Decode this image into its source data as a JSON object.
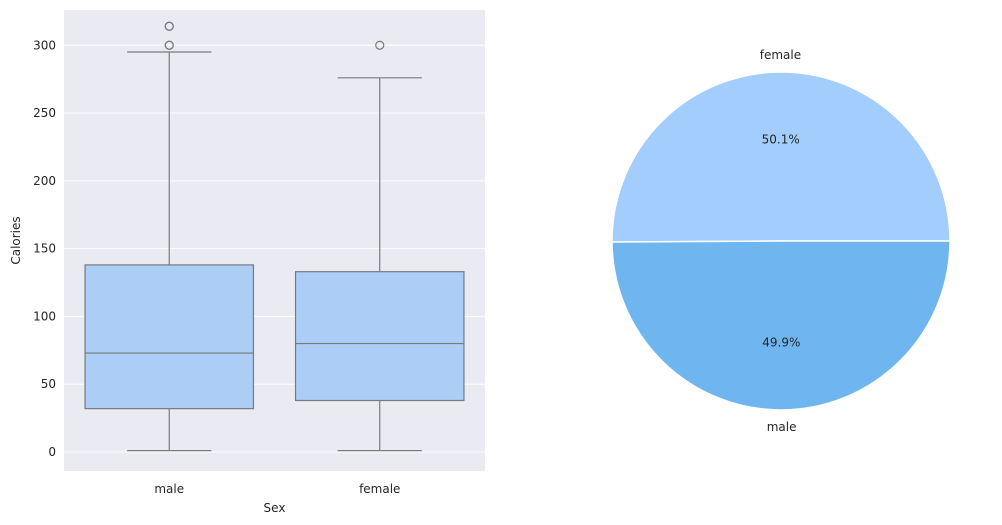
{
  "chart_data": [
    {
      "type": "box",
      "xlabel": "Sex",
      "ylabel": "Calories",
      "ylim": [
        -14,
        326
      ],
      "yticks": [
        0,
        50,
        100,
        150,
        200,
        250,
        300
      ],
      "grid": true,
      "box_color": "#abcdf6",
      "line_color": "#7a7a7a",
      "background": "#eaeaf2",
      "categories": [
        "male",
        "female"
      ],
      "boxes": [
        {
          "category": "male",
          "whisker_low": 1,
          "q1": 32,
          "median": 73,
          "q3": 138,
          "whisker_high": 295,
          "outliers": [
            300,
            300,
            314,
            314
          ]
        },
        {
          "category": "female",
          "whisker_low": 1,
          "q1": 38,
          "median": 80,
          "q3": 133,
          "whisker_high": 276,
          "outliers": [
            300
          ]
        }
      ]
    },
    {
      "type": "pie",
      "slices": [
        {
          "label": "female",
          "value": 50.1,
          "pct_label": "50.1%",
          "color": "#a3cdfd"
        },
        {
          "label": "male",
          "value": 49.9,
          "pct_label": "49.9%",
          "color": "#6fb6f1"
        }
      ]
    }
  ]
}
